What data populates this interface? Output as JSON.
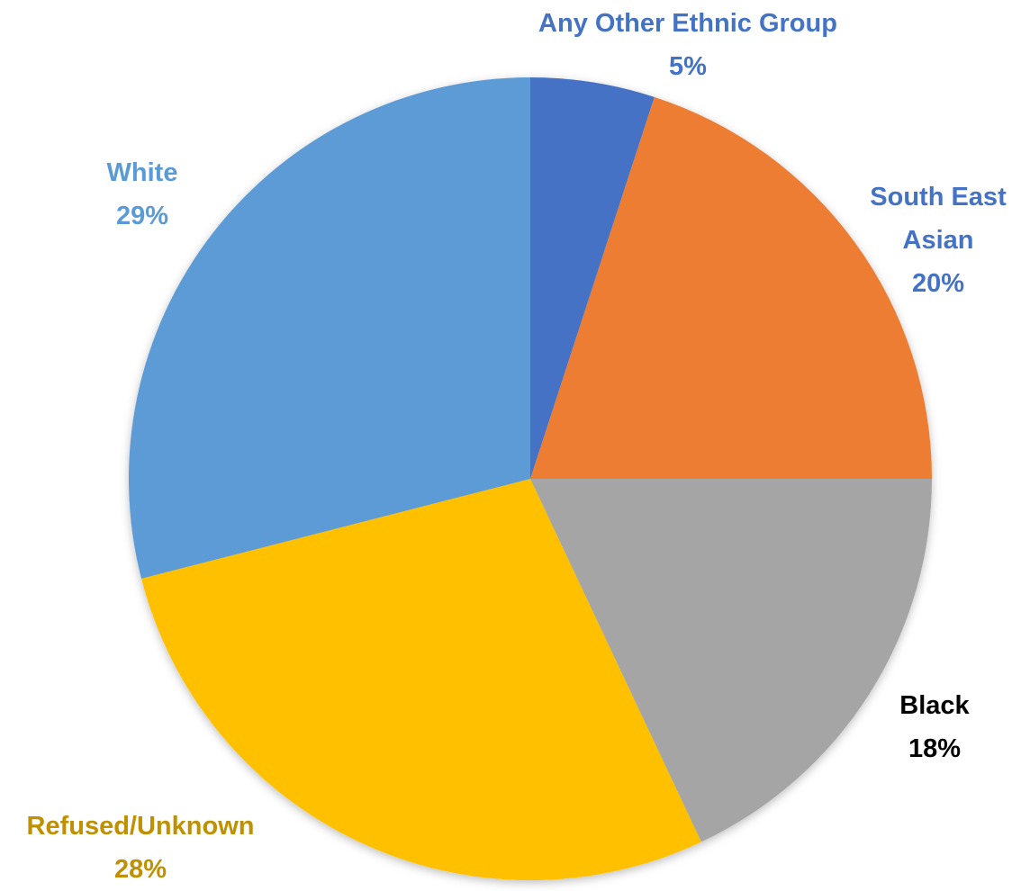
{
  "chart_data": {
    "type": "pie",
    "title": "",
    "start_angle_deg": 0,
    "direction": "clockwise",
    "slices": [
      {
        "label": "Any Other Ethnic Group",
        "value": 5,
        "value_text": "5%",
        "color": "#4472C4",
        "label_color": "#4472C4",
        "label_lines": [
          "Any Other Ethnic Group"
        ]
      },
      {
        "label": "South East Asian",
        "value": 20,
        "value_text": "20%",
        "color": "#ED7D31",
        "label_color": "#4472C4",
        "label_lines": [
          "South East",
          "Asian"
        ]
      },
      {
        "label": "Black",
        "value": 18,
        "value_text": "18%",
        "color": "#A5A5A5",
        "label_color": "#000000",
        "label_lines": [
          "Black"
        ]
      },
      {
        "label": "Refused/Unknown",
        "value": 28,
        "value_text": "28%",
        "color": "#FFC000",
        "label_color": "#BF9000",
        "label_lines": [
          "Refused/Unknown"
        ]
      },
      {
        "label": "White",
        "value": 29,
        "value_text": "29%",
        "color": "#5B9BD5",
        "label_color": "#5B9BD5",
        "label_lines": [
          "White"
        ]
      }
    ]
  }
}
